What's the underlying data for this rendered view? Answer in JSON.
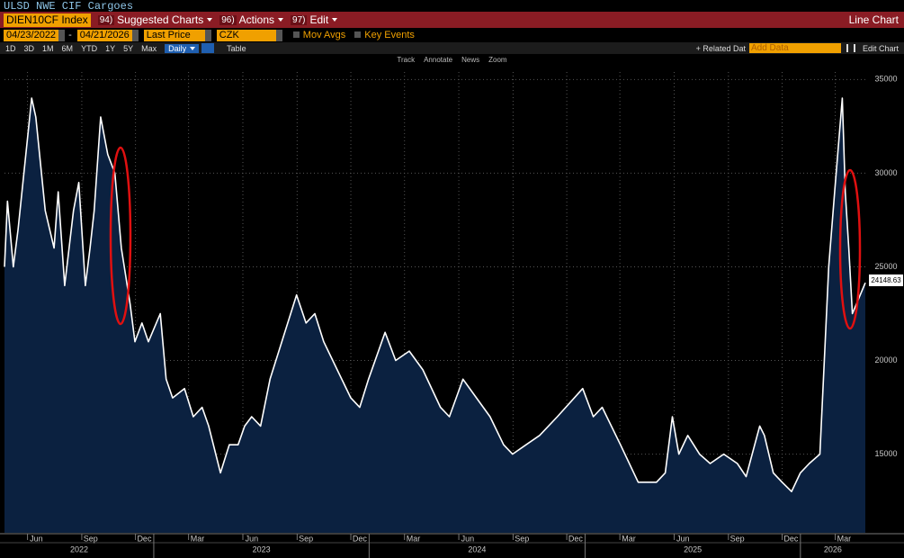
{
  "ui": {
    "title": "ULSD NWE CIF Cargoes",
    "ticker": "DIEN10CF Index",
    "menu": [
      {
        "num": "94)",
        "label": "Suggested Charts"
      },
      {
        "num": "96)",
        "label": "Actions"
      },
      {
        "num": "97)",
        "label": "Edit"
      }
    ],
    "chart_kind": "Line Chart",
    "start_date": "04/23/2022",
    "date_sep": "-",
    "end_date": "04/21/2026",
    "field": "Last Price",
    "currency": "CZK",
    "options": [
      "Mov Avgs",
      "Key Events"
    ],
    "periods": [
      "1D",
      "3D",
      "1M",
      "6M",
      "YTD",
      "1Y",
      "5Y",
      "Max"
    ],
    "frequency": "Daily",
    "view": "Table",
    "related": "+ Related Dat",
    "add_data": "Add Data",
    "edit_chart": "Edit Chart",
    "tools": [
      "Track",
      "Annotate",
      "News",
      "Zoom"
    ]
  },
  "chart_data": {
    "type": "line",
    "x": [
      "2022-04-23",
      "2022-04-28",
      "2022-05-08",
      "2022-05-16",
      "2022-06-08",
      "2022-06-15",
      "2022-07-01",
      "2022-07-16",
      "2022-07-23",
      "2022-08-03",
      "2022-08-18",
      "2022-08-27",
      "2022-09-07",
      "2022-09-15",
      "2022-09-22",
      "2022-10-03",
      "2022-10-15",
      "2022-10-27",
      "2022-11-07",
      "2022-11-22",
      "2022-11-30",
      "2022-12-12",
      "2022-12-23",
      "2023-01-12",
      "2023-01-22",
      "2023-02-02",
      "2023-02-22",
      "2023-03-09",
      "2023-03-24",
      "2023-04-04",
      "2023-04-24",
      "2023-05-09",
      "2023-05-24",
      "2023-06-04",
      "2023-06-16",
      "2023-07-01",
      "2023-07-17",
      "2023-08-31",
      "2023-09-16",
      "2023-10-01",
      "2023-10-16",
      "2023-11-08",
      "2023-12-01",
      "2023-12-16",
      "2023-12-31",
      "2024-01-28",
      "2024-02-15",
      "2024-03-09",
      "2024-04-01",
      "2024-05-01",
      "2024-05-16",
      "2024-06-08",
      "2024-07-01",
      "2024-07-24",
      "2024-08-16",
      "2024-08-31",
      "2024-09-23",
      "2024-10-16",
      "2024-11-15",
      "2024-12-28",
      "2025-01-15",
      "2025-01-30",
      "2025-03-02",
      "2025-04-01",
      "2025-05-02",
      "2025-05-17",
      "2025-05-29",
      "2025-06-09",
      "2025-06-24",
      "2025-07-14",
      "2025-08-01",
      "2025-08-24",
      "2025-09-16",
      "2025-10-01",
      "2025-10-24",
      "2025-11-01",
      "2025-11-16",
      "2025-12-01",
      "2025-12-17",
      "2026-01-01",
      "2026-01-16",
      "2026-02-03",
      "2026-02-12",
      "2026-02-18",
      "2026-02-28",
      "2026-03-13",
      "2026-03-18",
      "2026-03-24",
      "2026-03-30",
      "2026-04-21"
    ],
    "values": [
      25000,
      28500,
      25000,
      27000,
      34000,
      33000,
      28000,
      26000,
      29000,
      24000,
      28000,
      29500,
      24000,
      26000,
      28000,
      33000,
      31000,
      30000,
      26000,
      23000,
      21000,
      22000,
      21000,
      22500,
      19000,
      18000,
      18500,
      17000,
      17500,
      16500,
      14000,
      15500,
      15500,
      16500,
      17000,
      16500,
      19000,
      23500,
      22000,
      22500,
      21000,
      19500,
      18000,
      17500,
      19000,
      21500,
      20000,
      20500,
      19500,
      17500,
      17000,
      19000,
      18000,
      17000,
      15500,
      15000,
      15500,
      16000,
      17000,
      18500,
      17000,
      17500,
      15500,
      13500,
      13500,
      14000,
      17000,
      15000,
      16000,
      15000,
      14500,
      15000,
      14500,
      13800,
      16500,
      16000,
      14000,
      13500,
      13000,
      14000,
      14500,
      15000,
      21000,
      25000,
      29000,
      34000,
      29000,
      26000,
      22500,
      24148.63
    ],
    "color": "#ffffff",
    "fill": "#0b2140",
    "xlim": [
      "2022-04-23",
      "2026-04-21"
    ],
    "ylim": [
      10800,
      35400
    ],
    "yticks": [
      15000,
      20000,
      25000,
      30000,
      35000
    ],
    "xticks": [
      {
        "value": "2022-06-01",
        "label": "Jun"
      },
      {
        "value": "2022-09-01",
        "label": "Sep"
      },
      {
        "value": "2022-12-01",
        "label": "Dec"
      },
      {
        "value": "2023-03-01",
        "label": "Mar"
      },
      {
        "value": "2023-06-01",
        "label": "Jun"
      },
      {
        "value": "2023-09-01",
        "label": "Sep"
      },
      {
        "value": "2023-12-01",
        "label": "Dec"
      },
      {
        "value": "2024-03-01",
        "label": "Mar"
      },
      {
        "value": "2024-06-01",
        "label": "Jun"
      },
      {
        "value": "2024-09-01",
        "label": "Sep"
      },
      {
        "value": "2024-12-01",
        "label": "Dec"
      },
      {
        "value": "2025-03-01",
        "label": "Mar"
      },
      {
        "value": "2025-06-01",
        "label": "Jun"
      },
      {
        "value": "2025-09-01",
        "label": "Sep"
      },
      {
        "value": "2025-12-01",
        "label": "Dec"
      },
      {
        "value": "2026-03-01",
        "label": "Mar"
      }
    ],
    "years": [
      "2022",
      "2023",
      "2024",
      "2025",
      "2026"
    ],
    "grid": true
  }
}
